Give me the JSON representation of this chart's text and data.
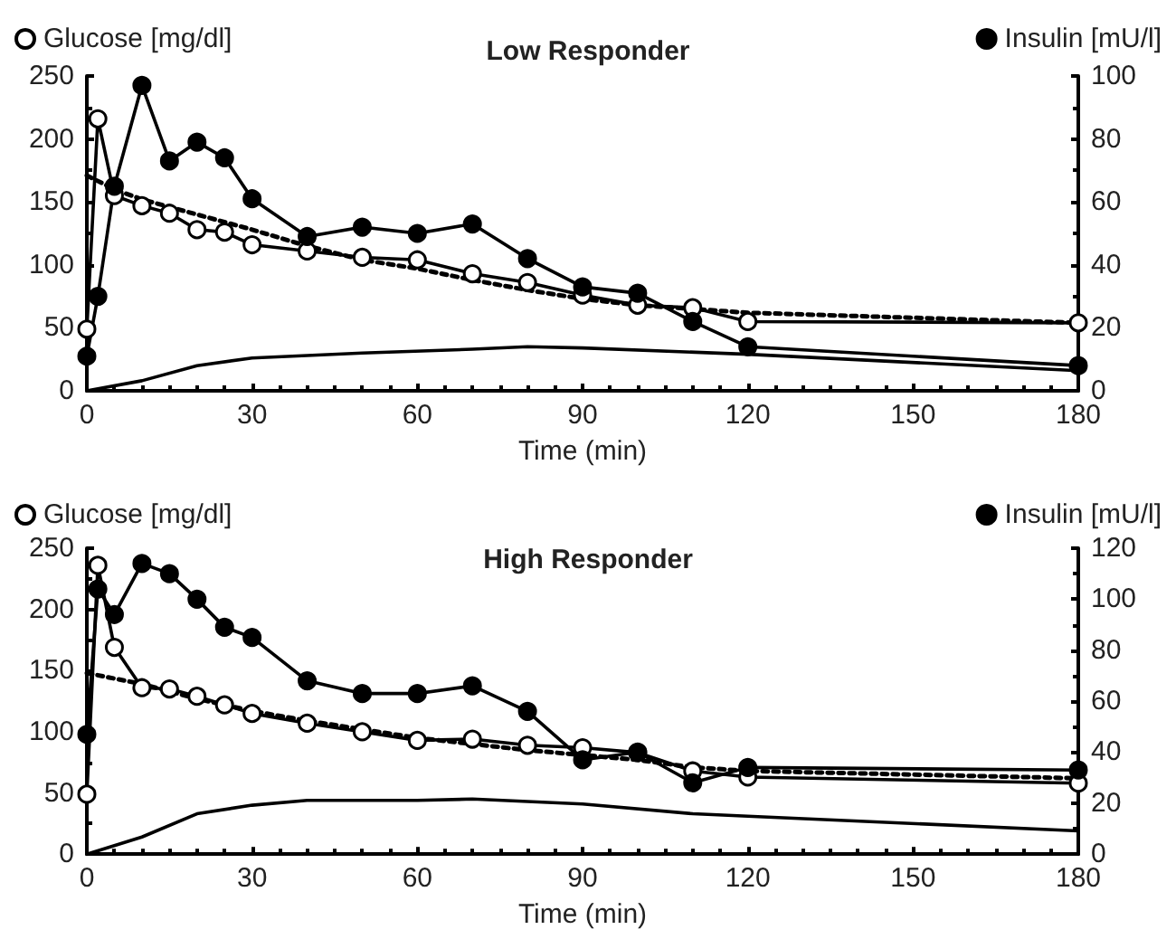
{
  "chart_data": [
    {
      "type": "line",
      "title": "Low Responder",
      "xlabel": "Time (min)",
      "x": [
        0,
        2,
        5,
        10,
        15,
        20,
        25,
        30,
        40,
        50,
        60,
        70,
        80,
        90,
        100,
        110,
        120,
        180
      ],
      "xlim": [
        0,
        180
      ],
      "xticks": [
        0,
        30,
        60,
        90,
        120,
        150,
        180
      ],
      "ylim": [
        0,
        250
      ],
      "yticks": [
        0,
        50,
        100,
        150,
        200,
        250
      ],
      "y2lim": [
        0,
        100
      ],
      "y2ticks": [
        0,
        20,
        40,
        60,
        80,
        100
      ],
      "grid": false,
      "legend": "top",
      "series": [
        {
          "name": "Glucose [mg/dl]",
          "color": "#000000",
          "marker": "circle",
          "values": [
            49,
            216,
            155,
            147,
            141,
            128,
            126,
            116,
            111,
            106,
            104,
            93,
            86,
            76,
            68,
            66,
            55,
            54
          ]
        },
        {
          "name": "Insulin [mU/l]",
          "color": "#000000",
          "marker": "circle",
          "axis": "y2",
          "values": [
            11,
            30,
            65,
            97,
            73,
            79,
            74,
            61,
            49,
            52,
            50,
            53,
            42,
            33,
            31,
            22,
            14,
            8
          ]
        },
        {
          "color": "#000000",
          "marker": "none",
          "line_style": "dotted",
          "x": [
            0,
            5,
            10,
            20,
            30,
            40,
            50,
            60,
            70,
            80,
            90,
            100,
            110,
            120,
            180
          ],
          "values": [
            171,
            160,
            152,
            140,
            128,
            115,
            104,
            97,
            88,
            80,
            73,
            68,
            65,
            62,
            54
          ]
        },
        {
          "color": "#000000",
          "marker": "none",
          "line_style": "solid",
          "x": [
            0,
            10,
            20,
            30,
            50,
            70,
            80,
            90,
            120,
            180
          ],
          "values": [
            0,
            8,
            20,
            26,
            30,
            33,
            35,
            34,
            29,
            16
          ]
        }
      ]
    },
    {
      "type": "line",
      "title": "High Responder",
      "xlabel": "Time (min)",
      "x": [
        0,
        2,
        5,
        10,
        15,
        20,
        25,
        30,
        40,
        50,
        60,
        70,
        80,
        90,
        100,
        110,
        120,
        180
      ],
      "xlim": [
        0,
        180
      ],
      "xticks": [
        0,
        30,
        60,
        90,
        120,
        150,
        180
      ],
      "ylim": [
        0,
        250
      ],
      "yticks": [
        0,
        50,
        100,
        150,
        200,
        250
      ],
      "y2lim": [
        0,
        120
      ],
      "y2ticks": [
        0,
        20,
        40,
        60,
        80,
        100,
        120
      ],
      "grid": false,
      "legend": "top",
      "series": [
        {
          "name": "Glucose [mg/dl]",
          "color": "#000000",
          "marker": "circle",
          "values": [
            49,
            236,
            169,
            136,
            135,
            129,
            122,
            115,
            107,
            100,
            93,
            94,
            89,
            87,
            83,
            68,
            63,
            58
          ]
        },
        {
          "name": "Insulin [mU/l]",
          "color": "#000000",
          "marker": "circle",
          "axis": "y2",
          "values": [
            47,
            104,
            94,
            114,
            110,
            100,
            89,
            85,
            68,
            63,
            63,
            66,
            56,
            37,
            40,
            28,
            34,
            33
          ]
        },
        {
          "color": "#000000",
          "marker": "none",
          "line_style": "dotted",
          "x": [
            0,
            10,
            20,
            30,
            40,
            50,
            60,
            70,
            80,
            90,
            100,
            110,
            120,
            180
          ],
          "values": [
            148,
            139,
            127,
            117,
            109,
            102,
            95,
            90,
            85,
            81,
            77,
            71,
            68,
            62
          ]
        },
        {
          "color": "#000000",
          "marker": "none",
          "line_style": "solid",
          "x": [
            0,
            10,
            20,
            30,
            40,
            60,
            70,
            90,
            110,
            120,
            180
          ],
          "values": [
            0,
            14,
            33,
            40,
            44,
            44,
            45,
            41,
            33,
            31,
            19
          ]
        }
      ]
    }
  ]
}
